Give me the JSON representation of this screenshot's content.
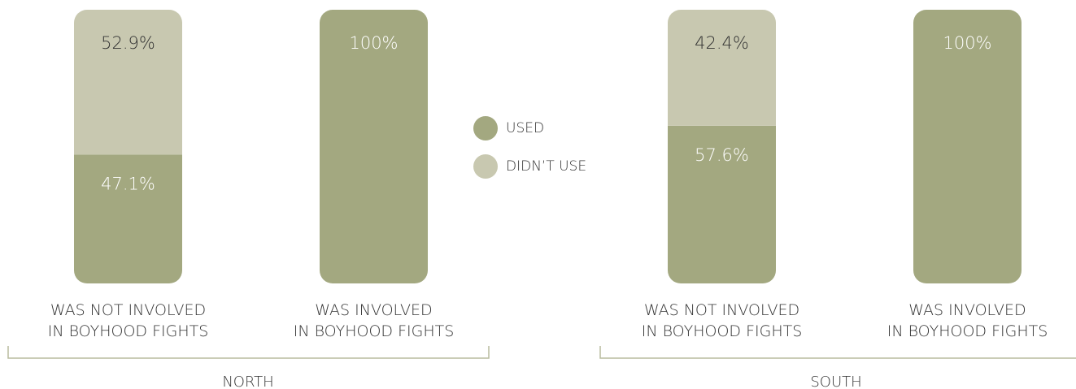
{
  "chart_data": {
    "type": "bar",
    "stacked": true,
    "categories": [
      "WAS NOT INVOLVED IN BOYHOOD FIGHTS",
      "WAS INVOLVED IN BOYHOOD FIGHTS",
      "WAS NOT INVOLVED IN BOYHOOD FIGHTS",
      "WAS INVOLVED IN BOYHOOD FIGHTS"
    ],
    "groups": [
      "NORTH",
      "SOUTH"
    ],
    "ylim": [
      0,
      100
    ],
    "legend": "center",
    "series": [
      {
        "name": "USED",
        "color": "#a3a880",
        "values": [
          47.1,
          100,
          57.6,
          100
        ],
        "value_labels": [
          "47.1%",
          "100%",
          "57.6%",
          "100%"
        ]
      },
      {
        "name": "DIDN’T USE",
        "color": "#c8c8b0",
        "values": [
          52.9,
          0,
          42.4,
          0
        ],
        "value_labels": [
          "52.9%",
          null,
          "42.4%",
          null
        ]
      }
    ]
  }
}
